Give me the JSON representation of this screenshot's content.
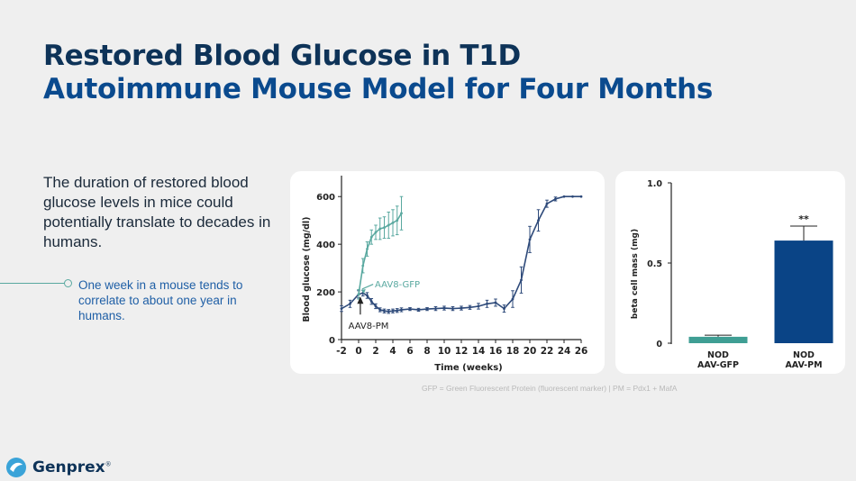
{
  "slide": {
    "title_line1": "Restored Blood Glucose in T1D",
    "title_line2": "Autoimmune Mouse Model for Four Months",
    "body": "The duration of restored blood glucose levels in mice could potentially translate to decades in humans.",
    "callout": "One week in a mouse tends to correlate to about one year in humans.",
    "footnote": "GFP = Green Fluorescent Protein (fluorescent marker) | PM = Pdx1 + MafA",
    "logo_text": "Genprex",
    "logo_mark": "®"
  },
  "colors": {
    "title_dark": "#0e3358",
    "title_blue": "#0a4a8e",
    "teal": "#5aa9a0",
    "navy": "#2e4a7a",
    "bar_navy": "#0a4486",
    "bar_teal": "#3f9e94"
  },
  "chart_data": [
    {
      "type": "line",
      "xlabel": "Time (weeks)",
      "ylabel": "Blood glucose (mg/dl)",
      "xlim": [
        -2,
        26
      ],
      "ylim": [
        0,
        650
      ],
      "xticks": [
        "-2",
        "0",
        "2",
        "4",
        "6",
        "8",
        "10",
        "12",
        "14",
        "16",
        "18",
        "20",
        "22",
        "24",
        "26"
      ],
      "yticks": [
        "0",
        "200",
        "400",
        "600"
      ],
      "series": [
        {
          "name": "AAV8-PM",
          "color": "#2e4a7a",
          "x": [
            -2,
            -1,
            0,
            0.5,
            1,
            1.5,
            2,
            2.5,
            3,
            3.5,
            4,
            4.5,
            5,
            6,
            7,
            8,
            9,
            10,
            11,
            12,
            13,
            14,
            15,
            16,
            17,
            18,
            19,
            20,
            21,
            22,
            23,
            24,
            25,
            26
          ],
          "values": [
            130,
            150,
            190,
            195,
            185,
            160,
            140,
            125,
            120,
            118,
            120,
            122,
            125,
            128,
            125,
            128,
            130,
            132,
            130,
            132,
            135,
            140,
            150,
            155,
            130,
            170,
            250,
            420,
            500,
            570,
            590,
            600,
            600,
            600
          ],
          "err": [
            12,
            15,
            15,
            12,
            12,
            12,
            10,
            8,
            8,
            8,
            8,
            8,
            8,
            6,
            6,
            6,
            8,
            8,
            8,
            8,
            8,
            12,
            15,
            15,
            15,
            35,
            55,
            55,
            45,
            15,
            8,
            0,
            0,
            0
          ],
          "label": "AAV8-PM"
        },
        {
          "name": "AAV8-GFP",
          "color": "#5aa9a0",
          "x": [
            0,
            0.5,
            1,
            1.5,
            2,
            2.5,
            3,
            3.5,
            4,
            4.5,
            5
          ],
          "values": [
            190,
            310,
            380,
            430,
            450,
            465,
            470,
            480,
            490,
            500,
            530
          ],
          "err": [
            20,
            30,
            30,
            30,
            30,
            45,
            45,
            55,
            55,
            60,
            70
          ],
          "label": "AAV8-GFP"
        }
      ]
    },
    {
      "type": "bar",
      "ylabel": "beta cell mass (mg)",
      "ylim": [
        0,
        1.0
      ],
      "yticks": [
        "0",
        "0.5",
        "1.0"
      ],
      "categories": [
        "NOD\nAAV-GFP",
        "NOD\nAAV-PM"
      ],
      "category_lines": [
        [
          "NOD",
          "AAV-GFP"
        ],
        [
          "NOD",
          "AAV-PM"
        ]
      ],
      "values": [
        0.04,
        0.64
      ],
      "err": [
        0.01,
        0.09
      ],
      "colors": [
        "#3f9e94",
        "#0a4486"
      ],
      "significance": [
        {
          "bar": 1,
          "label": "**"
        }
      ]
    }
  ]
}
